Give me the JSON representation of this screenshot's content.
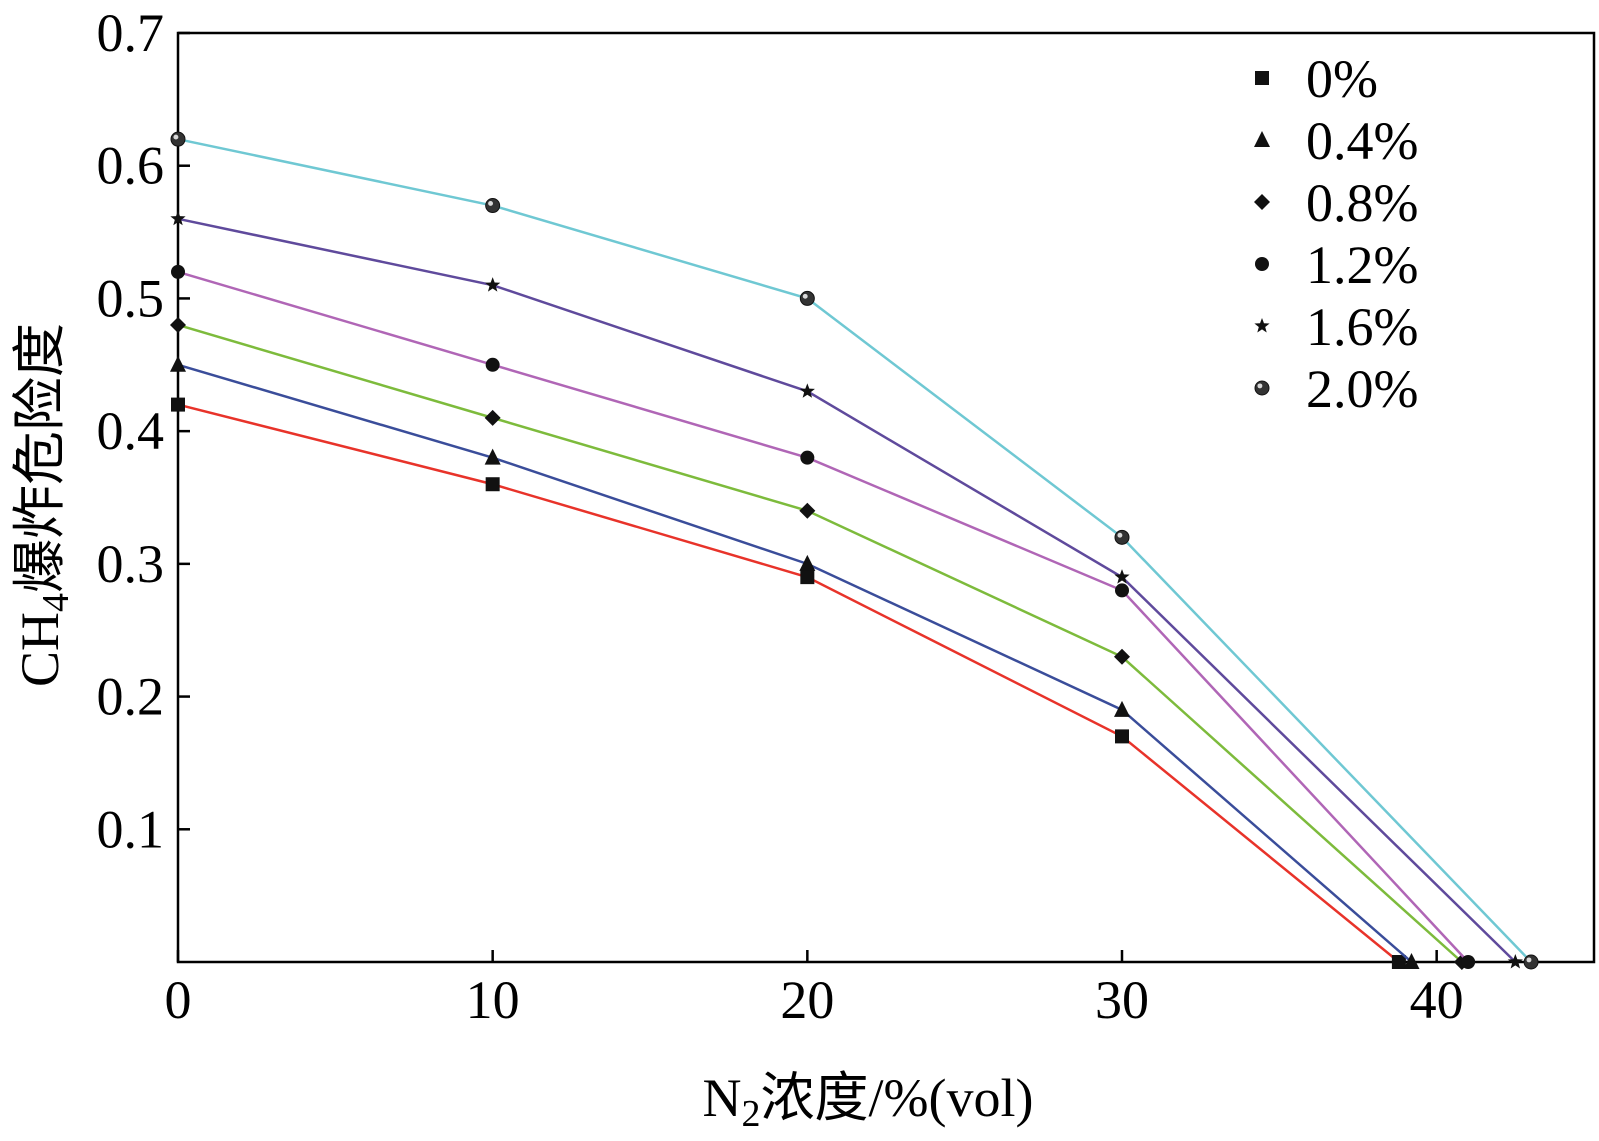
{
  "chart_data": {
    "type": "line",
    "x": [
      0,
      10,
      20,
      30
    ],
    "series": [
      {
        "name": "0%",
        "color": "#e8332a",
        "marker": "square",
        "x": [
          0,
          10,
          20,
          30,
          38.8
        ],
        "values": [
          0.42,
          0.36,
          0.29,
          0.17,
          0.0
        ]
      },
      {
        "name": "0.4%",
        "color": "#3a4d9a",
        "marker": "triangle",
        "x": [
          0,
          10,
          20,
          30,
          39.2
        ],
        "values": [
          0.45,
          0.38,
          0.3,
          0.19,
          0.0
        ]
      },
      {
        "name": "0.8%",
        "color": "#7dbb3c",
        "marker": "diamond",
        "x": [
          0,
          10,
          20,
          30,
          40.8
        ],
        "values": [
          0.48,
          0.41,
          0.34,
          0.23,
          0.0
        ]
      },
      {
        "name": "1.2%",
        "color": "#b066b6",
        "marker": "circle",
        "x": [
          0,
          10,
          20,
          30,
          41.0
        ],
        "values": [
          0.52,
          0.45,
          0.38,
          0.28,
          0.0
        ]
      },
      {
        "name": "1.6%",
        "color": "#5f4a9c",
        "marker": "star",
        "x": [
          0,
          10,
          20,
          30,
          42.5
        ],
        "values": [
          0.56,
          0.51,
          0.43,
          0.29,
          0.0
        ]
      },
      {
        "name": "2.0%",
        "color": "#6fc8d3",
        "marker": "sphere",
        "x": [
          0,
          10,
          20,
          30,
          43.0
        ],
        "values": [
          0.62,
          0.57,
          0.5,
          0.32,
          0.0
        ]
      }
    ],
    "xlim": [
      0,
      45
    ],
    "ylim": [
      0,
      0.7
    ],
    "x_ticks": [
      "0",
      "10",
      "20",
      "30",
      "40"
    ],
    "x_tick_values": [
      0,
      10,
      20,
      30,
      40
    ],
    "y_ticks": [
      "0.1",
      "0.2",
      "0.3",
      "0.4",
      "0.5",
      "0.6",
      "0.7"
    ],
    "y_tick_values": [
      0.1,
      0.2,
      0.3,
      0.4,
      0.5,
      0.6,
      0.7
    ],
    "xlabel_prefix": "N",
    "xlabel_sub": "2",
    "xlabel_suffix": "浓度/%(vol)",
    "ylabel_prefix": "CH",
    "ylabel_sub": "4",
    "ylabel_suffix": "爆炸危险度",
    "grid": false,
    "legend_position": "top-right"
  }
}
